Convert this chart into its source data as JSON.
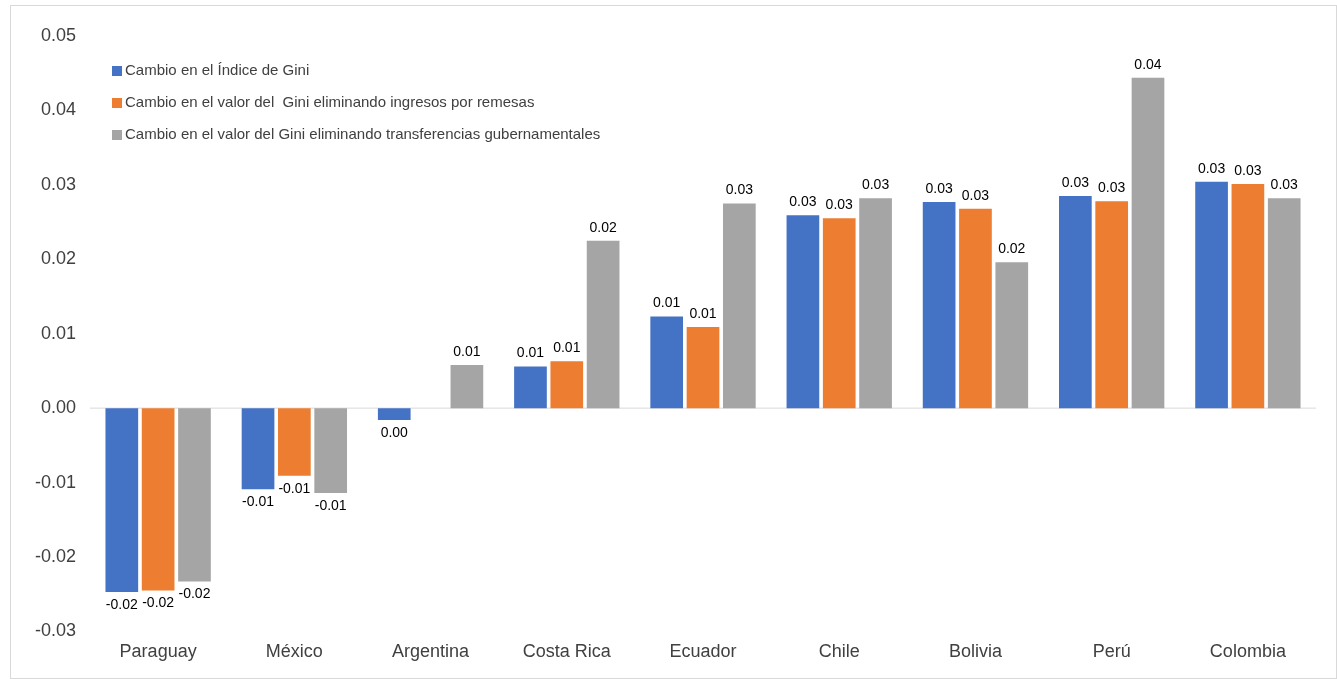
{
  "chart_data": {
    "type": "bar",
    "categories": [
      "Paraguay",
      "México",
      "Argentina",
      "Costa Rica",
      "Ecuador",
      "Chile",
      "Bolivia",
      "Perú",
      "Colombia"
    ],
    "series": [
      {
        "name": "Cambio en el Índice de Gini",
        "color": "#4472c4",
        "values": [
          -0.0247,
          -0.0109,
          -0.0016,
          0.0056,
          0.0123,
          0.0259,
          0.0277,
          0.0285,
          0.0304
        ],
        "value_labels": [
          "-0.02",
          "-0.01",
          "0.00",
          "0.01",
          "0.01",
          "0.03",
          "0.03",
          "0.03",
          "0.03"
        ]
      },
      {
        "name": "Cambio en el valor del  Gini eliminando ingresos por remesas",
        "color": "#ed7d31",
        "values": [
          -0.0245,
          -0.0091,
          null,
          0.0063,
          0.0109,
          0.0255,
          0.0268,
          0.0278,
          0.0301
        ],
        "value_labels": [
          "-0.02",
          "-0.01",
          null,
          "0.01",
          "0.01",
          "0.03",
          "0.03",
          "0.03",
          "0.03"
        ]
      },
      {
        "name": "Cambio en el valor del Gini eliminando transferencias gubernamentales",
        "color": "#a5a5a5",
        "values": [
          -0.0233,
          -0.0114,
          0.0058,
          0.0225,
          0.0275,
          0.0282,
          0.0196,
          0.0444,
          0.0282
        ],
        "value_labels": [
          "-0.02",
          "-0.01",
          "0.01",
          "0.02",
          "0.03",
          "0.03",
          "0.02",
          "0.04",
          "0.03"
        ]
      }
    ],
    "ylim": [
      -0.03,
      0.05
    ],
    "yticks": [
      {
        "value": -0.03,
        "label": "-0.03"
      },
      {
        "value": -0.02,
        "label": "-0.02"
      },
      {
        "value": -0.01,
        "label": "-0.01"
      },
      {
        "value": 0,
        "label": "0.00"
      },
      {
        "value": 0.01,
        "label": "0.01"
      },
      {
        "value": 0.02,
        "label": "0.02"
      },
      {
        "value": 0.03,
        "label": "0.03"
      },
      {
        "value": 0.04,
        "label": "0.04"
      },
      {
        "value": 0.05,
        "label": "0.05"
      }
    ],
    "ref_lines": [
      {
        "axis": "y",
        "value": 0,
        "color": "#d9d9d9"
      }
    ],
    "grid": false,
    "legend": "top left"
  }
}
